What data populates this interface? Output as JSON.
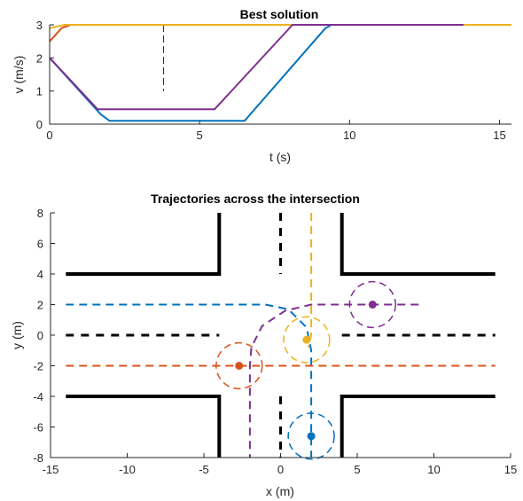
{
  "chart_data": [
    {
      "type": "line",
      "title": "Best solution",
      "xlabel": "t (s)",
      "ylabel": "v (m/s)",
      "xlim": [
        0,
        15.4
      ],
      "ylim": [
        0,
        3
      ],
      "xticks": [
        "0",
        "5",
        "10",
        "15"
      ],
      "yticks": [
        "0",
        "1",
        "2",
        "3"
      ],
      "xtick_values": [
        0,
        5,
        10,
        15
      ],
      "ytick_values": [
        0,
        1,
        2,
        3
      ],
      "vline": 3.8,
      "series": [
        {
          "color": "#0072BD",
          "x": [
            0,
            1.7,
            2.0,
            6.5,
            9.2,
            9.4,
            15.4
          ],
          "y": [
            2.0,
            0.3,
            0.1,
            0.1,
            2.9,
            3.0,
            3.0
          ]
        },
        {
          "color": "#D95319",
          "x": [
            0,
            0.4,
            0.7,
            15.4
          ],
          "y": [
            2.5,
            2.9,
            3.0,
            3.0
          ]
        },
        {
          "color": "#EDB120",
          "x": [
            0,
            0.5,
            0.8,
            15.4
          ],
          "y": [
            2.9,
            3.0,
            3.0,
            3.0
          ]
        },
        {
          "color": "#7E2F8E",
          "x": [
            0,
            1.6,
            5.5,
            8.1,
            13.8
          ],
          "y": [
            2.0,
            0.45,
            0.45,
            3.0,
            3.0
          ]
        }
      ]
    },
    {
      "type": "scatter",
      "title": "Trajectories across the intersection",
      "xlabel": "x (m)",
      "ylabel": "y (m)",
      "xlim": [
        -15,
        15
      ],
      "ylim": [
        -8,
        8
      ],
      "xticks": [
        "-15",
        "-10",
        "-5",
        "0",
        "5",
        "10",
        "15"
      ],
      "yticks": [
        "-8",
        "-6",
        "-4",
        "-2",
        "0",
        "2",
        "4",
        "6",
        "8"
      ],
      "xtick_values": [
        -15,
        -10,
        -5,
        0,
        5,
        10,
        15
      ],
      "ytick_values": [
        -8,
        -6,
        -4,
        -2,
        0,
        2,
        4,
        6,
        8
      ],
      "road_edges": [
        [
          [
            -14,
            4
          ],
          [
            -4,
            4
          ],
          [
            -4,
            8
          ]
        ],
        [
          [
            4,
            8
          ],
          [
            4,
            4
          ],
          [
            14,
            4
          ]
        ],
        [
          [
            -14,
            -4
          ],
          [
            -4,
            -4
          ],
          [
            -4,
            -8
          ]
        ],
        [
          [
            4,
            -8
          ],
          [
            4,
            -4
          ],
          [
            14,
            -4
          ]
        ]
      ],
      "center_lines": [
        [
          [
            -14,
            0
          ],
          [
            -4,
            0
          ]
        ],
        [
          [
            4,
            0
          ],
          [
            14,
            0
          ]
        ],
        [
          [
            0,
            8
          ],
          [
            0,
            4
          ]
        ],
        [
          [
            0,
            -4
          ],
          [
            0,
            -8
          ]
        ]
      ],
      "vehicles": [
        {
          "color": "#0072BD",
          "position": [
            2,
            -6.6
          ],
          "path": [
            [
              -14,
              2
            ],
            [
              -1,
              2
            ],
            [
              0.5,
              1.7
            ],
            [
              1.7,
              0.5
            ],
            [
              2,
              -1
            ],
            [
              2,
              -8
            ]
          ]
        },
        {
          "color": "#D95319",
          "position": [
            -2.7,
            -2
          ],
          "path": [
            [
              -14,
              -2
            ],
            [
              14,
              -2
            ]
          ]
        },
        {
          "color": "#EDB120",
          "position": [
            1.7,
            -0.3
          ],
          "path": [
            [
              2,
              8
            ],
            [
              2,
              0
            ],
            [
              1.8,
              -0.8
            ]
          ]
        },
        {
          "color": "#7E2F8E",
          "position": [
            6,
            2
          ],
          "path": [
            [
              9,
              2
            ],
            [
              2,
              2
            ],
            [
              0.3,
              1.6
            ],
            [
              -1.2,
              0.6
            ],
            [
              -1.9,
              -0.8
            ],
            [
              -2,
              -2
            ],
            [
              -2,
              -8
            ]
          ]
        }
      ],
      "safety_radius": 1.5
    }
  ]
}
